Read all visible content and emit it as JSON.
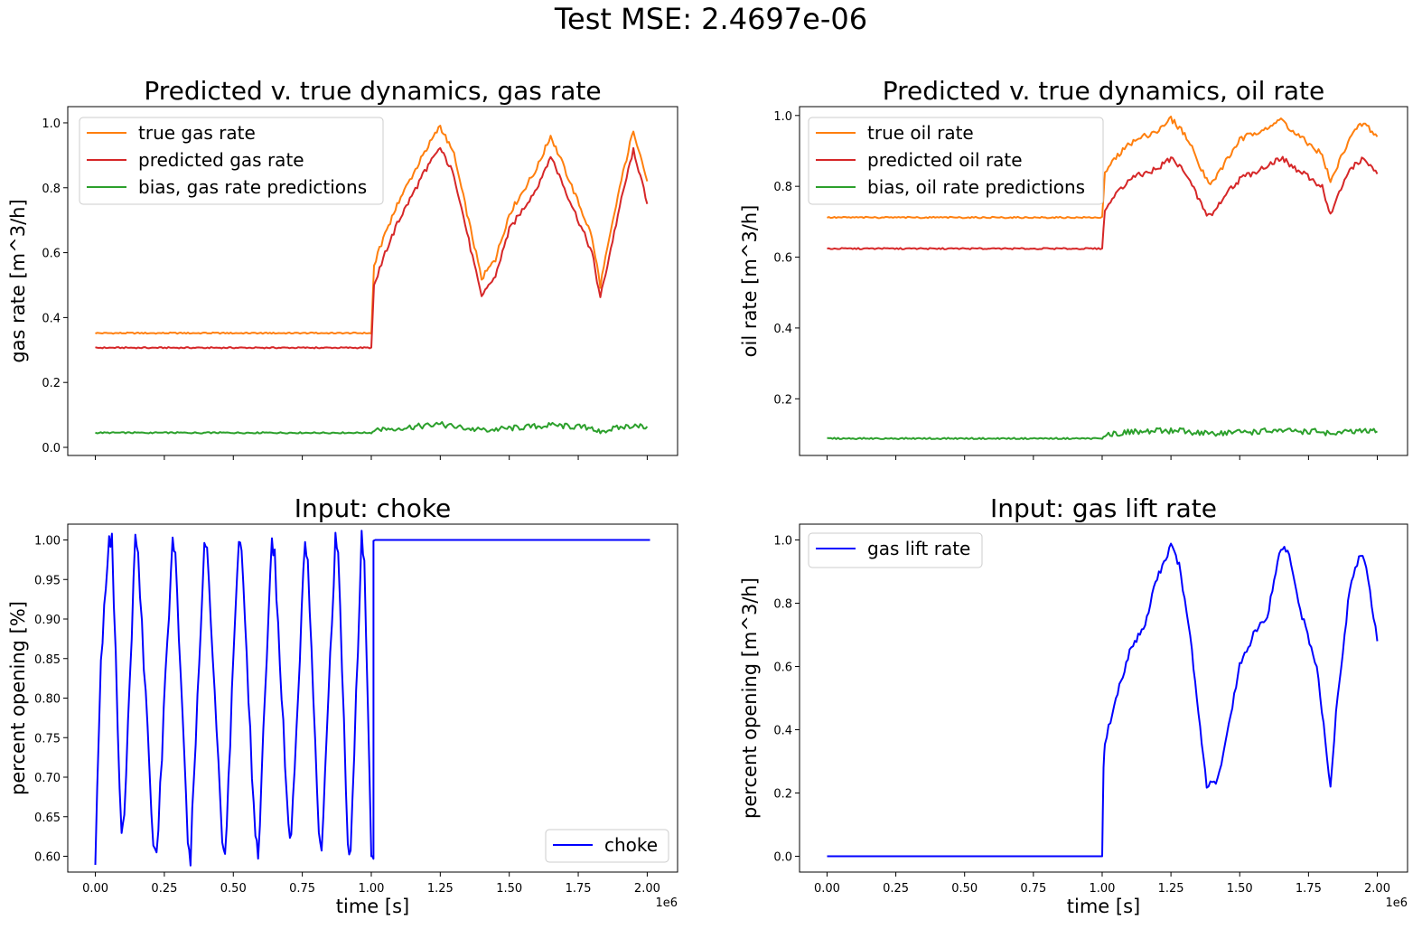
{
  "figure": {
    "suptitle": "Test MSE: 2.4697e-06"
  },
  "chart_data": [
    {
      "type": "line",
      "title": "Predicted v. true dynamics, gas rate",
      "xlabel": "",
      "ylabel": "gas rate [m^3/h]",
      "xlim": [
        -100000,
        2110000
      ],
      "ylim": [
        -0.025,
        1.05
      ],
      "xticks": [
        0,
        250000,
        500000,
        750000,
        1000000,
        1250000,
        1500000,
        1750000,
        2000000
      ],
      "xtick_labels": [
        "",
        "",
        "",
        "",
        "",
        "",
        "",
        "",
        ""
      ],
      "yticks": [
        0.0,
        0.2,
        0.4,
        0.6,
        0.8,
        1.0
      ],
      "ytick_labels": [
        "0.0",
        "0.2",
        "0.4",
        "0.6",
        "0.8",
        "1.0"
      ],
      "x_offset_label": "",
      "legend": "upper-left",
      "series": [
        {
          "name": "true gas rate",
          "color": "#ff7f0e",
          "x": [
            0,
            200000,
            400000,
            600000,
            800000,
            1000000,
            1010000,
            1050000,
            1100000,
            1200000,
            1250000,
            1300000,
            1400000,
            1450000,
            1500000,
            1600000,
            1650000,
            1700000,
            1800000,
            1830000,
            1900000,
            1950000,
            2000000
          ],
          "y": [
            0.352,
            0.352,
            0.352,
            0.352,
            0.352,
            0.352,
            0.56,
            0.66,
            0.76,
            0.92,
            0.99,
            0.9,
            0.52,
            0.58,
            0.72,
            0.86,
            0.96,
            0.86,
            0.65,
            0.5,
            0.8,
            0.98,
            0.82
          ]
        },
        {
          "name": "predicted gas rate",
          "color": "#d62728",
          "x": [
            0,
            200000,
            400000,
            600000,
            800000,
            1000000,
            1010000,
            1050000,
            1100000,
            1200000,
            1250000,
            1300000,
            1400000,
            1450000,
            1500000,
            1600000,
            1650000,
            1700000,
            1800000,
            1830000,
            1900000,
            1950000,
            2000000
          ],
          "y": [
            0.307,
            0.307,
            0.307,
            0.307,
            0.307,
            0.307,
            0.5,
            0.6,
            0.7,
            0.86,
            0.92,
            0.84,
            0.46,
            0.53,
            0.67,
            0.8,
            0.9,
            0.8,
            0.6,
            0.46,
            0.74,
            0.92,
            0.75
          ]
        },
        {
          "name": "bias, gas rate predictions",
          "color": "#2ca02c",
          "x": [
            0,
            200000,
            400000,
            600000,
            800000,
            1000000,
            1010000,
            1100000,
            1250000,
            1400000,
            1650000,
            1800000,
            1830000,
            1950000,
            2000000
          ],
          "y": [
            0.045,
            0.045,
            0.045,
            0.045,
            0.045,
            0.045,
            0.055,
            0.06,
            0.07,
            0.052,
            0.068,
            0.06,
            0.05,
            0.068,
            0.064
          ]
        }
      ]
    },
    {
      "type": "line",
      "title": "Predicted v. true dynamics, oil rate",
      "xlabel": "",
      "ylabel": "oil rate [m^3/h]",
      "xlim": [
        -100000,
        2110000
      ],
      "ylim": [
        0.04,
        1.025
      ],
      "xticks": [
        0,
        250000,
        500000,
        750000,
        1000000,
        1250000,
        1500000,
        1750000,
        2000000
      ],
      "xtick_labels": [
        "",
        "",
        "",
        "",
        "",
        "",
        "",
        "",
        ""
      ],
      "yticks": [
        0.2,
        0.4,
        0.6,
        0.8,
        1.0
      ],
      "ytick_labels": [
        "0.2",
        "0.4",
        "0.6",
        "0.8",
        "1.0"
      ],
      "x_offset_label": "",
      "legend": "upper-left",
      "series": [
        {
          "name": "true oil rate",
          "color": "#ff7f0e",
          "x": [
            0,
            200000,
            400000,
            600000,
            800000,
            1000000,
            1010000,
            1050000,
            1100000,
            1200000,
            1250000,
            1300000,
            1380000,
            1400000,
            1450000,
            1500000,
            1600000,
            1650000,
            1700000,
            1800000,
            1830000,
            1900000,
            1950000,
            2000000
          ],
          "y": [
            0.712,
            0.712,
            0.712,
            0.712,
            0.712,
            0.712,
            0.84,
            0.88,
            0.92,
            0.96,
            0.99,
            0.95,
            0.82,
            0.81,
            0.87,
            0.93,
            0.97,
            0.99,
            0.95,
            0.89,
            0.81,
            0.94,
            0.98,
            0.94
          ]
        },
        {
          "name": "predicted oil rate",
          "color": "#d62728",
          "x": [
            0,
            200000,
            400000,
            600000,
            800000,
            1000000,
            1010000,
            1050000,
            1100000,
            1200000,
            1250000,
            1300000,
            1380000,
            1400000,
            1450000,
            1500000,
            1600000,
            1650000,
            1700000,
            1800000,
            1830000,
            1900000,
            1950000,
            2000000
          ],
          "y": [
            0.624,
            0.624,
            0.624,
            0.624,
            0.624,
            0.624,
            0.74,
            0.78,
            0.82,
            0.85,
            0.88,
            0.84,
            0.72,
            0.72,
            0.78,
            0.82,
            0.86,
            0.88,
            0.85,
            0.8,
            0.72,
            0.85,
            0.88,
            0.835
          ]
        },
        {
          "name": "bias, oil rate predictions",
          "color": "#2ca02c",
          "x": [
            0,
            200000,
            400000,
            600000,
            800000,
            1000000,
            1010000,
            1100000,
            1250000,
            1400000,
            1650000,
            1800000,
            1830000,
            1950000,
            2000000
          ],
          "y": [
            0.088,
            0.088,
            0.088,
            0.088,
            0.088,
            0.088,
            0.1,
            0.105,
            0.11,
            0.103,
            0.11,
            0.107,
            0.102,
            0.108,
            0.108
          ]
        }
      ]
    },
    {
      "type": "line",
      "title": "Input: choke",
      "xlabel": "time [s]",
      "ylabel": "percent opening [%]",
      "xlim": [
        -100000,
        2110000
      ],
      "ylim": [
        0.58,
        1.02
      ],
      "xticks": [
        0,
        250000,
        500000,
        750000,
        1000000,
        1250000,
        1500000,
        1750000,
        2000000
      ],
      "xtick_labels": [
        "0.00",
        "0.25",
        "0.50",
        "0.75",
        "1.00",
        "1.25",
        "1.50",
        "1.75",
        "2.00"
      ],
      "yticks": [
        0.6,
        0.65,
        0.7,
        0.75,
        0.8,
        0.85,
        0.9,
        0.95,
        1.0
      ],
      "ytick_labels": [
        "0.60",
        "0.65",
        "0.70",
        "0.75",
        "0.80",
        "0.85",
        "0.90",
        "0.95",
        "1.00"
      ],
      "x_offset_label": "1e6",
      "legend": "lower-right",
      "series": [
        {
          "name": "choke",
          "color": "#0000ff",
          "x": [
            0,
            20000,
            50000,
            60000,
            95000,
            105000,
            145000,
            155000,
            210000,
            222000,
            280000,
            290000,
            335000,
            345000,
            395000,
            405000,
            460000,
            470000,
            520000,
            530000,
            580000,
            590000,
            640000,
            650000,
            700000,
            710000,
            760000,
            770000,
            810000,
            820000,
            870000,
            880000,
            915000,
            925000,
            965000,
            975000,
            1000000,
            1008000,
            1008000,
            2010000
          ],
          "y": [
            0.6,
            0.85,
            1.0,
            1.0,
            0.62,
            0.65,
            1.0,
            0.98,
            0.62,
            0.6,
            1.0,
            0.98,
            0.62,
            0.6,
            1.0,
            0.98,
            0.62,
            0.6,
            1.0,
            0.98,
            0.62,
            0.6,
            1.0,
            0.98,
            0.63,
            0.62,
            1.0,
            0.98,
            0.62,
            0.6,
            1.0,
            0.98,
            0.62,
            0.6,
            1.0,
            0.98,
            0.6,
            0.6,
            1.0,
            1.0
          ]
        }
      ]
    },
    {
      "type": "line",
      "title": "Input: gas lift rate",
      "xlabel": "time [s]",
      "ylabel": "percent opening [m^3/h]",
      "xlim": [
        -100000,
        2110000
      ],
      "ylim": [
        -0.05,
        1.05
      ],
      "xticks": [
        0,
        250000,
        500000,
        750000,
        1000000,
        1250000,
        1500000,
        1750000,
        2000000
      ],
      "xtick_labels": [
        "0.00",
        "0.25",
        "0.50",
        "0.75",
        "1.00",
        "1.25",
        "1.50",
        "1.75",
        "2.00"
      ],
      "yticks": [
        0.0,
        0.2,
        0.4,
        0.6,
        0.8,
        1.0
      ],
      "ytick_labels": [
        "0.0",
        "0.2",
        "0.4",
        "0.6",
        "0.8",
        "1.0"
      ],
      "x_offset_label": "1e6",
      "legend": "upper-left",
      "series": [
        {
          "name": "gas lift rate",
          "color": "#0000ff",
          "x": [
            0,
            200000,
            400000,
            600000,
            800000,
            1000000,
            1005000,
            1010000,
            1050000,
            1100000,
            1150000,
            1200000,
            1250000,
            1280000,
            1320000,
            1350000,
            1380000,
            1420000,
            1460000,
            1500000,
            1550000,
            1600000,
            1650000,
            1680000,
            1720000,
            1780000,
            1830000,
            1850000,
            1900000,
            1940000,
            1960000,
            2000000
          ],
          "y": [
            0.0,
            0.0,
            0.0,
            0.0,
            0.0,
            0.0,
            0.28,
            0.36,
            0.5,
            0.65,
            0.72,
            0.88,
            0.98,
            0.92,
            0.7,
            0.45,
            0.22,
            0.24,
            0.42,
            0.6,
            0.7,
            0.76,
            0.98,
            0.96,
            0.78,
            0.6,
            0.22,
            0.45,
            0.85,
            0.96,
            0.92,
            0.68
          ]
        }
      ]
    }
  ]
}
